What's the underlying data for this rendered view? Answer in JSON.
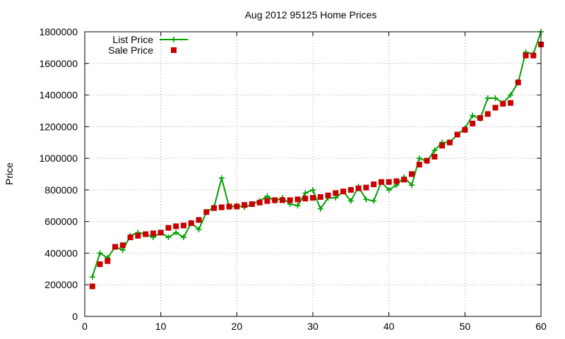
{
  "chart_data": {
    "type": "line",
    "title": "Aug 2012 95125 Home Prices",
    "xlabel": "",
    "ylabel": "Price",
    "xlim": [
      0,
      60
    ],
    "ylim": [
      0,
      1800000
    ],
    "x_ticks": [
      0,
      10,
      20,
      30,
      40,
      50,
      60
    ],
    "y_ticks": [
      0,
      200000,
      400000,
      600000,
      800000,
      1000000,
      1200000,
      1400000,
      1600000,
      1800000
    ],
    "grid": true,
    "legend_position": "top-left",
    "series": [
      {
        "name": "List Price",
        "style": "line-plus",
        "color": "#00a000",
        "x": [
          1,
          2,
          3,
          4,
          5,
          6,
          7,
          8,
          9,
          10,
          11,
          12,
          13,
          14,
          15,
          16,
          17,
          18,
          19,
          20,
          21,
          22,
          23,
          24,
          25,
          26,
          27,
          28,
          29,
          30,
          31,
          32,
          33,
          34,
          35,
          36,
          37,
          38,
          39,
          40,
          41,
          42,
          43,
          44,
          45,
          46,
          47,
          48,
          49,
          50,
          51,
          52,
          53,
          54,
          55,
          56,
          57,
          58,
          59,
          60
        ],
        "values": [
          250000,
          400000,
          370000,
          440000,
          420000,
          510000,
          530000,
          520000,
          500000,
          530000,
          500000,
          530000,
          500000,
          590000,
          550000,
          660000,
          690000,
          875000,
          690000,
          700000,
          690000,
          710000,
          730000,
          760000,
          730000,
          750000,
          710000,
          700000,
          780000,
          800000,
          680000,
          750000,
          750000,
          790000,
          730000,
          820000,
          740000,
          730000,
          850000,
          800000,
          830000,
          880000,
          830000,
          1000000,
          980000,
          1050000,
          1100000,
          1100000,
          1150000,
          1190000,
          1270000,
          1250000,
          1380000,
          1380000,
          1350000,
          1400000,
          1480000,
          1670000,
          1660000,
          1800000
        ]
      },
      {
        "name": "Sale Price",
        "style": "square-markers",
        "color": "#c80000",
        "x": [
          1,
          2,
          3,
          4,
          5,
          6,
          7,
          8,
          9,
          10,
          11,
          12,
          13,
          14,
          15,
          16,
          17,
          18,
          19,
          20,
          21,
          22,
          23,
          24,
          25,
          26,
          27,
          28,
          29,
          30,
          31,
          32,
          33,
          34,
          35,
          36,
          37,
          38,
          39,
          40,
          41,
          42,
          43,
          44,
          45,
          46,
          47,
          48,
          49,
          50,
          51,
          52,
          53,
          54,
          55,
          56,
          57,
          58,
          59,
          60
        ],
        "values": [
          190000,
          330000,
          350000,
          440000,
          450000,
          500000,
          510000,
          520000,
          525000,
          530000,
          560000,
          570000,
          575000,
          590000,
          610000,
          660000,
          685000,
          690000,
          695000,
          695000,
          705000,
          710000,
          720000,
          730000,
          735000,
          735000,
          735000,
          740000,
          745000,
          750000,
          755000,
          765000,
          780000,
          790000,
          800000,
          810000,
          815000,
          835000,
          850000,
          850000,
          855000,
          865000,
          900000,
          960000,
          985000,
          1010000,
          1080000,
          1100000,
          1150000,
          1180000,
          1220000,
          1255000,
          1280000,
          1320000,
          1345000,
          1350000,
          1480000,
          1650000,
          1650000,
          1720000
        ]
      }
    ]
  }
}
